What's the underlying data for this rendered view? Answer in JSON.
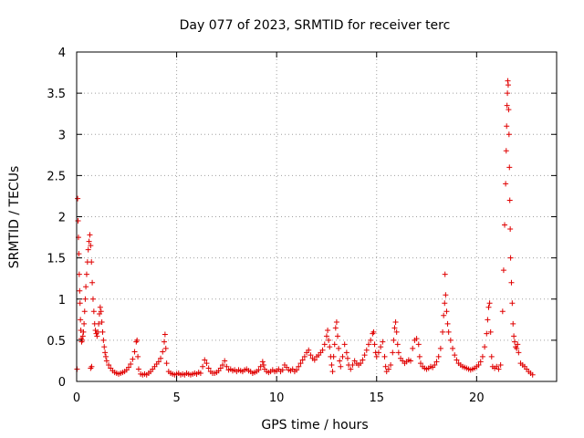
{
  "chart_data": {
    "type": "scatter",
    "title": "Day 077 of 2023, SRMTID for receiver terc",
    "xlabel": "GPS time / hours",
    "ylabel": "SRMTID / TECUs",
    "xlim": [
      0,
      24
    ],
    "ylim": [
      0,
      4
    ],
    "xticks": [
      0,
      5,
      10,
      15,
      20
    ],
    "xtick_labels": [
      "0",
      "5",
      "10",
      "15",
      "20"
    ],
    "yticks": [
      0,
      0.5,
      1,
      1.5,
      2,
      2.5,
      3,
      3.5,
      4
    ],
    "ytick_labels": [
      "0",
      "0.5",
      "1",
      "1.5",
      "2",
      "2.5",
      "3",
      "3.5",
      "4"
    ],
    "grid": true,
    "marker": "+",
    "color": "#e00000",
    "series": [
      {
        "name": "SRMTID",
        "points": [
          [
            0.02,
            0.15
          ],
          [
            0.05,
            2.22
          ],
          [
            0.07,
            1.95
          ],
          [
            0.09,
            1.75
          ],
          [
            0.11,
            1.55
          ],
          [
            0.13,
            1.3
          ],
          [
            0.15,
            1.1
          ],
          [
            0.17,
            0.95
          ],
          [
            0.19,
            0.75
          ],
          [
            0.21,
            0.62
          ],
          [
            0.23,
            0.52
          ],
          [
            0.25,
            0.48
          ],
          [
            0.28,
            0.5
          ],
          [
            0.31,
            0.55
          ],
          [
            0.34,
            0.6
          ],
          [
            0.37,
            0.7
          ],
          [
            0.4,
            0.85
          ],
          [
            0.43,
            1.0
          ],
          [
            0.46,
            1.15
          ],
          [
            0.5,
            1.3
          ],
          [
            0.54,
            1.45
          ],
          [
            0.58,
            1.6
          ],
          [
            0.62,
            1.7
          ],
          [
            0.66,
            1.78
          ],
          [
            0.7,
            1.65
          ],
          [
            0.74,
            1.45
          ],
          [
            0.78,
            1.2
          ],
          [
            0.82,
            1.0
          ],
          [
            0.86,
            0.85
          ],
          [
            0.9,
            0.7
          ],
          [
            0.94,
            0.62
          ],
          [
            0.98,
            0.58
          ],
          [
            1.02,
            0.55
          ],
          [
            1.06,
            0.6
          ],
          [
            1.1,
            0.7
          ],
          [
            1.14,
            0.82
          ],
          [
            1.18,
            0.9
          ],
          [
            1.22,
            0.85
          ],
          [
            1.26,
            0.72
          ],
          [
            1.3,
            0.6
          ],
          [
            1.34,
            0.5
          ],
          [
            1.38,
            0.42
          ],
          [
            1.42,
            0.35
          ],
          [
            1.46,
            0.3
          ],
          [
            0.7,
            0.16
          ],
          [
            0.75,
            0.18
          ],
          [
            1.5,
            0.25
          ],
          [
            1.6,
            0.2
          ],
          [
            1.7,
            0.16
          ],
          [
            1.8,
            0.13
          ],
          [
            1.9,
            0.11
          ],
          [
            2.0,
            0.1
          ],
          [
            2.1,
            0.09
          ],
          [
            2.2,
            0.1
          ],
          [
            2.3,
            0.11
          ],
          [
            2.4,
            0.12
          ],
          [
            2.5,
            0.14
          ],
          [
            2.6,
            0.17
          ],
          [
            2.7,
            0.21
          ],
          [
            2.8,
            0.27
          ],
          [
            2.9,
            0.36
          ],
          [
            2.98,
            0.48
          ],
          [
            3.02,
            0.5
          ],
          [
            3.06,
            0.3
          ],
          [
            3.1,
            0.15
          ],
          [
            3.2,
            0.09
          ],
          [
            3.3,
            0.08
          ],
          [
            3.4,
            0.09
          ],
          [
            3.5,
            0.08
          ],
          [
            3.6,
            0.1
          ],
          [
            3.7,
            0.12
          ],
          [
            3.8,
            0.15
          ],
          [
            3.9,
            0.18
          ],
          [
            4.0,
            0.21
          ],
          [
            4.1,
            0.24
          ],
          [
            4.2,
            0.28
          ],
          [
            4.3,
            0.36
          ],
          [
            4.38,
            0.48
          ],
          [
            4.42,
            0.57
          ],
          [
            4.46,
            0.4
          ],
          [
            4.5,
            0.22
          ],
          [
            4.6,
            0.12
          ],
          [
            4.7,
            0.1
          ],
          [
            4.8,
            0.09
          ],
          [
            4.9,
            0.08
          ],
          [
            5.0,
            0.09
          ],
          [
            5.1,
            0.1
          ],
          [
            5.2,
            0.08
          ],
          [
            5.3,
            0.09
          ],
          [
            5.4,
            0.08
          ],
          [
            5.5,
            0.1
          ],
          [
            5.6,
            0.09
          ],
          [
            5.7,
            0.08
          ],
          [
            5.8,
            0.09
          ],
          [
            5.9,
            0.1
          ],
          [
            6.0,
            0.09
          ],
          [
            6.1,
            0.11
          ],
          [
            6.2,
            0.1
          ],
          [
            6.3,
            0.18
          ],
          [
            6.4,
            0.26
          ],
          [
            6.5,
            0.22
          ],
          [
            6.6,
            0.16
          ],
          [
            6.7,
            0.12
          ],
          [
            6.8,
            0.1
          ],
          [
            6.9,
            0.1
          ],
          [
            7.0,
            0.11
          ],
          [
            7.1,
            0.13
          ],
          [
            7.2,
            0.16
          ],
          [
            7.3,
            0.2
          ],
          [
            7.4,
            0.25
          ],
          [
            7.5,
            0.18
          ],
          [
            7.6,
            0.14
          ],
          [
            7.7,
            0.15
          ],
          [
            7.8,
            0.13
          ],
          [
            7.9,
            0.14
          ],
          [
            8.0,
            0.12
          ],
          [
            8.1,
            0.14
          ],
          [
            8.2,
            0.13
          ],
          [
            8.3,
            0.12
          ],
          [
            8.4,
            0.14
          ],
          [
            8.5,
            0.15
          ],
          [
            8.6,
            0.13
          ],
          [
            8.7,
            0.12
          ],
          [
            8.8,
            0.1
          ],
          [
            8.9,
            0.11
          ],
          [
            9.0,
            0.12
          ],
          [
            9.1,
            0.14
          ],
          [
            9.2,
            0.18
          ],
          [
            9.3,
            0.24
          ],
          [
            9.35,
            0.2
          ],
          [
            9.4,
            0.15
          ],
          [
            9.5,
            0.12
          ],
          [
            9.6,
            0.11
          ],
          [
            9.7,
            0.12
          ],
          [
            9.8,
            0.14
          ],
          [
            9.9,
            0.12
          ],
          [
            10.0,
            0.13
          ],
          [
            10.1,
            0.15
          ],
          [
            10.2,
            0.12
          ],
          [
            10.3,
            0.14
          ],
          [
            10.4,
            0.2
          ],
          [
            10.5,
            0.17
          ],
          [
            10.6,
            0.14
          ],
          [
            10.7,
            0.13
          ],
          [
            10.8,
            0.15
          ],
          [
            10.9,
            0.12
          ],
          [
            11.0,
            0.14
          ],
          [
            11.1,
            0.18
          ],
          [
            11.2,
            0.22
          ],
          [
            11.3,
            0.26
          ],
          [
            11.4,
            0.3
          ],
          [
            11.5,
            0.35
          ],
          [
            11.6,
            0.38
          ],
          [
            11.7,
            0.32
          ],
          [
            11.8,
            0.28
          ],
          [
            11.9,
            0.26
          ],
          [
            12.0,
            0.3
          ],
          [
            12.1,
            0.32
          ],
          [
            12.2,
            0.35
          ],
          [
            12.3,
            0.38
          ],
          [
            12.4,
            0.45
          ],
          [
            12.5,
            0.55
          ],
          [
            12.55,
            0.62
          ],
          [
            12.6,
            0.5
          ],
          [
            12.65,
            0.42
          ],
          [
            12.7,
            0.3
          ],
          [
            12.75,
            0.2
          ],
          [
            12.8,
            0.12
          ],
          [
            12.85,
            0.3
          ],
          [
            12.9,
            0.45
          ],
          [
            12.95,
            0.65
          ],
          [
            13.0,
            0.72
          ],
          [
            13.05,
            0.55
          ],
          [
            13.1,
            0.4
          ],
          [
            13.15,
            0.25
          ],
          [
            13.2,
            0.18
          ],
          [
            13.3,
            0.3
          ],
          [
            13.4,
            0.45
          ],
          [
            13.5,
            0.35
          ],
          [
            13.55,
            0.28
          ],
          [
            13.6,
            0.2
          ],
          [
            13.7,
            0.15
          ],
          [
            13.8,
            0.2
          ],
          [
            13.9,
            0.25
          ],
          [
            14.0,
            0.22
          ],
          [
            14.1,
            0.2
          ],
          [
            14.2,
            0.22
          ],
          [
            14.3,
            0.26
          ],
          [
            14.4,
            0.32
          ],
          [
            14.5,
            0.38
          ],
          [
            14.6,
            0.45
          ],
          [
            14.7,
            0.5
          ],
          [
            14.8,
            0.58
          ],
          [
            14.85,
            0.6
          ],
          [
            14.9,
            0.45
          ],
          [
            14.95,
            0.35
          ],
          [
            15.0,
            0.3
          ],
          [
            15.1,
            0.35
          ],
          [
            15.2,
            0.42
          ],
          [
            15.3,
            0.48
          ],
          [
            15.4,
            0.3
          ],
          [
            15.45,
            0.18
          ],
          [
            15.5,
            0.12
          ],
          [
            15.6,
            0.15
          ],
          [
            15.7,
            0.2
          ],
          [
            15.8,
            0.35
          ],
          [
            15.85,
            0.5
          ],
          [
            15.9,
            0.65
          ],
          [
            15.95,
            0.72
          ],
          [
            16.0,
            0.6
          ],
          [
            16.05,
            0.45
          ],
          [
            16.1,
            0.35
          ],
          [
            16.2,
            0.28
          ],
          [
            16.3,
            0.25
          ],
          [
            16.4,
            0.22
          ],
          [
            16.5,
            0.24
          ],
          [
            16.6,
            0.26
          ],
          [
            16.7,
            0.25
          ],
          [
            16.8,
            0.4
          ],
          [
            16.9,
            0.5
          ],
          [
            17.0,
            0.52
          ],
          [
            17.1,
            0.45
          ],
          [
            17.15,
            0.3
          ],
          [
            17.2,
            0.22
          ],
          [
            17.3,
            0.18
          ],
          [
            17.4,
            0.16
          ],
          [
            17.5,
            0.15
          ],
          [
            17.6,
            0.16
          ],
          [
            17.7,
            0.18
          ],
          [
            17.8,
            0.17
          ],
          [
            17.9,
            0.2
          ],
          [
            18.0,
            0.24
          ],
          [
            18.1,
            0.3
          ],
          [
            18.2,
            0.4
          ],
          [
            18.3,
            0.6
          ],
          [
            18.35,
            0.8
          ],
          [
            18.4,
            0.95
          ],
          [
            18.42,
            1.3
          ],
          [
            18.45,
            1.05
          ],
          [
            18.5,
            0.85
          ],
          [
            18.55,
            0.7
          ],
          [
            18.6,
            0.6
          ],
          [
            18.7,
            0.5
          ],
          [
            18.8,
            0.4
          ],
          [
            18.9,
            0.32
          ],
          [
            19.0,
            0.26
          ],
          [
            19.1,
            0.22
          ],
          [
            19.2,
            0.2
          ],
          [
            19.3,
            0.18
          ],
          [
            19.4,
            0.17
          ],
          [
            19.5,
            0.16
          ],
          [
            19.6,
            0.15
          ],
          [
            19.7,
            0.14
          ],
          [
            19.8,
            0.15
          ],
          [
            19.9,
            0.16
          ],
          [
            20.0,
            0.18
          ],
          [
            20.1,
            0.2
          ],
          [
            20.2,
            0.24
          ],
          [
            20.3,
            0.3
          ],
          [
            20.4,
            0.42
          ],
          [
            20.5,
            0.58
          ],
          [
            20.55,
            0.75
          ],
          [
            20.6,
            0.9
          ],
          [
            20.65,
            0.95
          ],
          [
            20.7,
            0.6
          ],
          [
            20.75,
            0.3
          ],
          [
            20.8,
            0.18
          ],
          [
            20.9,
            0.16
          ],
          [
            21.0,
            0.18
          ],
          [
            21.1,
            0.15
          ],
          [
            21.2,
            0.2
          ],
          [
            21.3,
            0.85
          ],
          [
            21.35,
            1.35
          ],
          [
            21.4,
            1.9
          ],
          [
            21.45,
            2.4
          ],
          [
            21.48,
            2.8
          ],
          [
            21.5,
            3.1
          ],
          [
            21.52,
            3.35
          ],
          [
            21.54,
            3.5
          ],
          [
            21.56,
            3.65
          ],
          [
            21.58,
            3.6
          ],
          [
            21.6,
            3.3
          ],
          [
            21.62,
            3.0
          ],
          [
            21.64,
            2.6
          ],
          [
            21.66,
            2.2
          ],
          [
            21.68,
            1.85
          ],
          [
            21.7,
            1.5
          ],
          [
            21.74,
            1.2
          ],
          [
            21.78,
            0.95
          ],
          [
            21.82,
            0.7
          ],
          [
            21.86,
            0.55
          ],
          [
            21.9,
            0.48
          ],
          [
            21.95,
            0.42
          ],
          [
            22.0,
            0.4
          ],
          [
            22.05,
            0.45
          ],
          [
            22.1,
            0.35
          ],
          [
            22.2,
            0.22
          ],
          [
            22.3,
            0.2
          ],
          [
            22.4,
            0.18
          ],
          [
            22.5,
            0.15
          ],
          [
            22.6,
            0.12
          ],
          [
            22.7,
            0.1
          ],
          [
            22.8,
            0.08
          ]
        ]
      }
    ]
  }
}
